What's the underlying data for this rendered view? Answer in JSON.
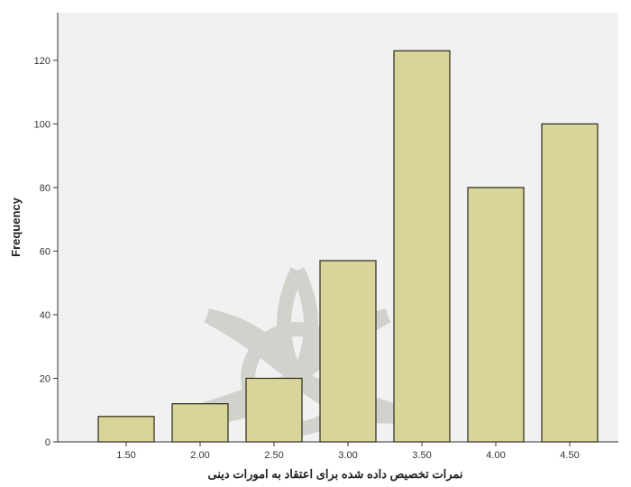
{
  "chart_data": {
    "type": "bar",
    "title": "",
    "xlabel": "نمرات تخصیص داده شده برای اعتقاد به امورات دینی",
    "ylabel": "Frequency",
    "categories": [
      "1.50",
      "2.00",
      "2.50",
      "3.00",
      "3.50",
      "4.00",
      "4.50"
    ],
    "values": [
      8,
      12,
      20,
      57,
      123,
      80,
      100
    ],
    "ylim": [
      0,
      135
    ],
    "yticks": [
      0,
      20,
      40,
      60,
      80,
      100,
      120
    ],
    "grid": false,
    "legend": "none",
    "colors": {
      "bar_fill": "#d8d49a",
      "bar_stroke": "#2a2a14",
      "plot_background": "#f1f1f1",
      "watermark": "#a8a89a"
    }
  }
}
